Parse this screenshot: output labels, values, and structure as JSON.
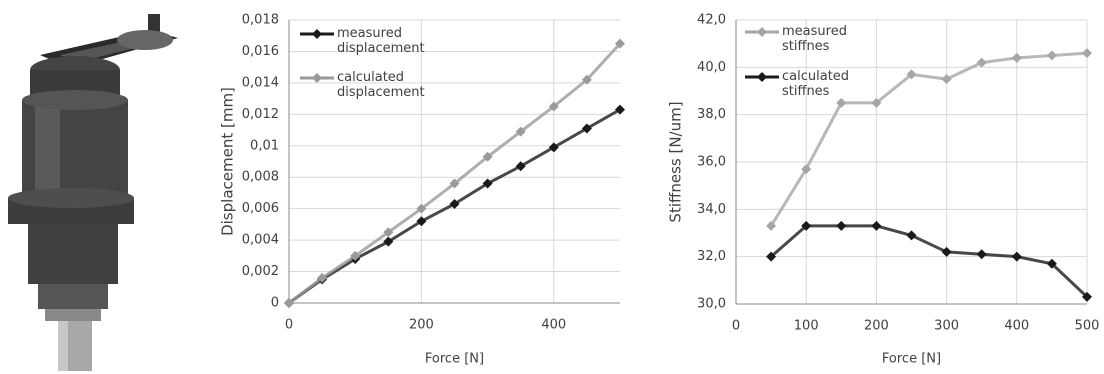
{
  "chart_data": [
    {
      "type": "line",
      "x_label": "Force [N]",
      "y_label": "Displacement [mm]",
      "x": [
        0,
        50,
        100,
        150,
        200,
        250,
        300,
        350,
        400,
        450,
        500
      ],
      "xlim": [
        0,
        500
      ],
      "xticks": [
        0,
        200,
        400
      ],
      "ylim": [
        0,
        0.018
      ],
      "yticks": [
        0,
        {
          "value": 0.002,
          "label": "0,002"
        },
        {
          "value": 0.004,
          "label": "0,004"
        },
        {
          "value": 0.006,
          "label": "0,006"
        },
        {
          "value": 0.008,
          "label": "0,008"
        },
        {
          "value": 0.01,
          "label": "0,01"
        },
        {
          "value": 0.012,
          "label": "0,012"
        },
        {
          "value": 0.014,
          "label": "0,014"
        },
        {
          "value": 0.016,
          "label": "0,016"
        },
        {
          "value": 0.018,
          "label": "0,018"
        }
      ],
      "grid": true,
      "series": [
        {
          "name": "measured displacement",
          "color": "#1a1a1a",
          "values": [
            0,
            0.0015,
            0.0028,
            0.0039,
            0.0052,
            0.0063,
            0.0076,
            0.0087,
            0.0099,
            0.0111,
            0.0123
          ]
        },
        {
          "name": "calculated displacement",
          "color": "#9a9a9a",
          "values": [
            0,
            0.0016,
            0.003,
            0.0045,
            0.006,
            0.0076,
            0.0093,
            0.0109,
            0.0125,
            0.0142,
            0.0165
          ]
        }
      ]
    },
    {
      "type": "line",
      "x_label": "Force [N]",
      "y_label": "Stiffness [N/um]",
      "x": [
        50,
        100,
        150,
        200,
        250,
        300,
        350,
        400,
        450,
        500
      ],
      "xlim": [
        0,
        500
      ],
      "xticks": [
        0,
        100,
        200,
        300,
        400,
        500
      ],
      "ylim": [
        30,
        42
      ],
      "yticks": [
        {
          "value": 30,
          "label": "30,0"
        },
        {
          "value": 32,
          "label": "32,0"
        },
        {
          "value": 34,
          "label": "34,0"
        },
        {
          "value": 36,
          "label": "36,0"
        },
        {
          "value": 38,
          "label": "38,0"
        },
        {
          "value": 40,
          "label": "40,0"
        },
        {
          "value": 42,
          "label": "42,0"
        }
      ],
      "grid": true,
      "series": [
        {
          "name": "measured stiffnes",
          "color": "#a6a6a6",
          "values": [
            33.3,
            35.7,
            38.5,
            38.5,
            39.7,
            39.5,
            40.2,
            40.4,
            40.5,
            40.6
          ]
        },
        {
          "name": "calculated stiffnes",
          "color": "#1a1a1a",
          "values": [
            32.0,
            33.3,
            33.3,
            33.3,
            32.9,
            32.2,
            32.1,
            32.0,
            31.7,
            30.3
          ]
        }
      ]
    }
  ]
}
